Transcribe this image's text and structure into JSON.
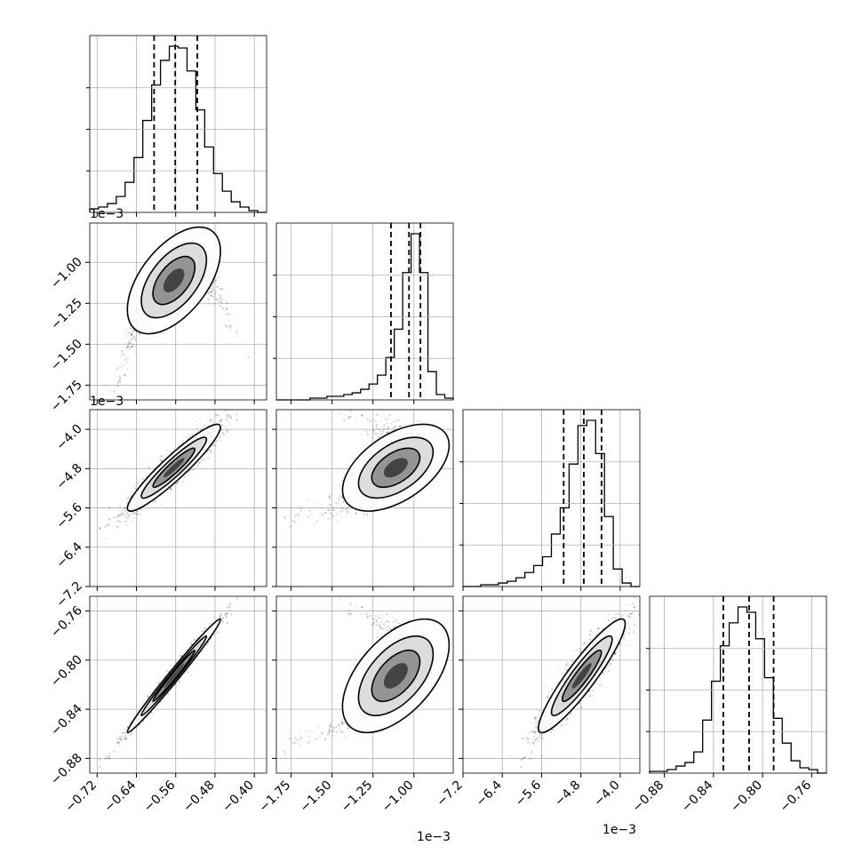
{
  "chart_data": {
    "type": "corner",
    "parameters": [
      {
        "index": 0,
        "range": [
          -0.735,
          -0.375
        ],
        "ticks": [
          -0.72,
          -0.64,
          -0.56,
          -0.48,
          -0.4
        ],
        "tick_labels": [
          "−0.72",
          "−0.64",
          "−0.56",
          "−0.48",
          "−0.40"
        ],
        "offset_label": "",
        "quantiles": [
          -0.604,
          -0.561,
          -0.516
        ]
      },
      {
        "index": 1,
        "range": [
          -1.84,
          -0.76
        ],
        "ticks": [
          -1.75,
          -1.5,
          -1.25,
          -1.0
        ],
        "tick_labels": [
          "−1.75",
          "−1.50",
          "−1.25",
          "−1.00"
        ],
        "offset_label": "1e−3",
        "quantiles": [
          -1.14,
          -1.03,
          -0.96
        ]
      },
      {
        "index": 2,
        "range": [
          -7.2,
          -3.6
        ],
        "ticks": [
          -7.2,
          -6.4,
          -5.6,
          -4.8,
          -4.0
        ],
        "tick_labels": [
          "−7.2",
          "−6.4",
          "−5.6",
          "−4.8",
          "−4.0"
        ],
        "offset_label": "1e−3",
        "quantiles": [
          -5.15,
          -4.74,
          -4.38
        ]
      },
      {
        "index": 3,
        "range": [
          -0.892,
          -0.748
        ],
        "ticks": [
          -0.88,
          -0.84,
          -0.8,
          -0.76
        ],
        "tick_labels": [
          "−0.88",
          "−0.84",
          "−0.80",
          "−0.76"
        ],
        "offset_label": "",
        "quantiles": [
          -0.832,
          -0.811,
          -0.791
        ]
      }
    ],
    "histograms": [
      {
        "param": 0,
        "counts": [
          2,
          3,
          5,
          9,
          17,
          31,
          52,
          72,
          86,
          94,
          93,
          80,
          58,
          37,
          22,
          12,
          6,
          3,
          1,
          0
        ]
      },
      {
        "param": 1,
        "counts": [
          0,
          0,
          0,
          0,
          1,
          1,
          2,
          2,
          3,
          4,
          6,
          9,
          14,
          24,
          40,
          72,
          94,
          72,
          16,
          3,
          1
        ]
      },
      {
        "param": 2,
        "counts": [
          0,
          0,
          1,
          1,
          2,
          3,
          5,
          8,
          12,
          17,
          30,
          45,
          70,
          92,
          95,
          76,
          40,
          10,
          2,
          0
        ]
      },
      {
        "param": 3,
        "counts": [
          1,
          1,
          2,
          4,
          6,
          12,
          30,
          52,
          72,
          85,
          94,
          91,
          76,
          54,
          31,
          17,
          7,
          3,
          2,
          0
        ]
      }
    ],
    "pairs": [
      {
        "x": 0,
        "y": 1,
        "description": "banana-shaped correlation"
      },
      {
        "x": 0,
        "y": 2,
        "description": "positive correlation"
      },
      {
        "x": 1,
        "y": 2,
        "description": "curved correlation"
      },
      {
        "x": 0,
        "y": 3,
        "description": "tight positive correlation"
      },
      {
        "x": 1,
        "y": 3,
        "description": "curved correlation"
      },
      {
        "x": 2,
        "y": 3,
        "description": "tight positive correlation"
      }
    ],
    "grid": true,
    "quantile_line_style": "dashed"
  }
}
